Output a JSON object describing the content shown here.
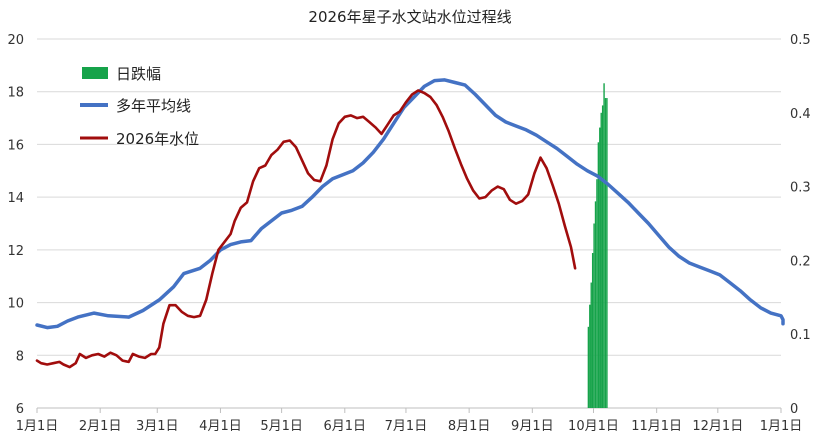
{
  "chart_data": {
    "type": "line",
    "title": "2026年星子水文站水位过程线",
    "left_axis": {
      "range": [
        6,
        20
      ],
      "ticks": [
        6,
        8,
        10,
        12,
        14,
        16,
        18,
        20
      ]
    },
    "right_axis": {
      "range": [
        0,
        0.5
      ],
      "ticks": [
        "0",
        "0.1",
        "0.2",
        "0.3",
        "0.4",
        "0.5"
      ]
    },
    "x_axis": {
      "range_days": [
        0,
        365
      ],
      "ticks": [
        {
          "label": "1月1日",
          "day": 0
        },
        {
          "label": "2月1日",
          "day": 31
        },
        {
          "label": "3月1日",
          "day": 59
        },
        {
          "label": "4月1日",
          "day": 90
        },
        {
          "label": "5月1日",
          "day": 120
        },
        {
          "label": "6月1日",
          "day": 151
        },
        {
          "label": "7月1日",
          "day": 181
        },
        {
          "label": "8月1日",
          "day": 212
        },
        {
          "label": "9月1日",
          "day": 243
        },
        {
          "label": "10月1日",
          "day": 273
        },
        {
          "label": "11月1日",
          "day": 304
        },
        {
          "label": "12月1日",
          "day": 334
        },
        {
          "label": "1月1日",
          "day": 365
        }
      ]
    },
    "grid": "horizontal",
    "legend_position": "top-left",
    "colors": {
      "daily_drop": "#16a34a",
      "average": "#4472c4",
      "level_2026": "#a10d0d"
    },
    "series": [
      {
        "name": "日跌幅",
        "kind": "bar",
        "axis": "right",
        "points": [
          [
            270.5,
            0.11
          ],
          [
            271.2,
            0.14
          ],
          [
            271.9,
            0.17
          ],
          [
            272.6,
            0.21
          ],
          [
            273.3,
            0.25
          ],
          [
            274.0,
            0.28
          ],
          [
            274.7,
            0.31
          ],
          [
            275.4,
            0.36
          ],
          [
            276.1,
            0.38
          ],
          [
            276.8,
            0.4
          ],
          [
            277.5,
            0.41
          ],
          [
            278.2,
            0.44
          ],
          [
            278.9,
            0.42
          ],
          [
            279.6,
            0.42
          ]
        ]
      },
      {
        "name": "多年平均线",
        "kind": "line",
        "axis": "left",
        "points": [
          [
            0,
            9.15
          ],
          [
            5,
            9.05
          ],
          [
            10,
            9.1
          ],
          [
            15,
            9.3
          ],
          [
            20,
            9.45
          ],
          [
            28,
            9.6
          ],
          [
            35,
            9.5
          ],
          [
            45,
            9.45
          ],
          [
            52,
            9.7
          ],
          [
            60,
            10.1
          ],
          [
            67,
            10.6
          ],
          [
            72,
            11.1
          ],
          [
            80,
            11.3
          ],
          [
            85,
            11.6
          ],
          [
            90,
            12.0
          ],
          [
            95,
            12.2
          ],
          [
            100,
            12.3
          ],
          [
            105,
            12.35
          ],
          [
            110,
            12.8
          ],
          [
            115,
            13.1
          ],
          [
            120,
            13.4
          ],
          [
            125,
            13.5
          ],
          [
            130,
            13.65
          ],
          [
            135,
            14.0
          ],
          [
            140,
            14.4
          ],
          [
            145,
            14.7
          ],
          [
            150,
            14.85
          ],
          [
            155,
            15.0
          ],
          [
            160,
            15.3
          ],
          [
            165,
            15.7
          ],
          [
            170,
            16.2
          ],
          [
            175,
            16.8
          ],
          [
            180,
            17.4
          ],
          [
            185,
            17.8
          ],
          [
            190,
            18.2
          ],
          [
            195,
            18.42
          ],
          [
            200,
            18.45
          ],
          [
            205,
            18.35
          ],
          [
            210,
            18.25
          ],
          [
            215,
            17.9
          ],
          [
            220,
            17.5
          ],
          [
            225,
            17.1
          ],
          [
            230,
            16.85
          ],
          [
            235,
            16.7
          ],
          [
            240,
            16.55
          ],
          [
            245,
            16.35
          ],
          [
            250,
            16.1
          ],
          [
            255,
            15.85
          ],
          [
            260,
            15.55
          ],
          [
            265,
            15.25
          ],
          [
            270,
            15.0
          ],
          [
            275,
            14.8
          ],
          [
            280,
            14.5
          ],
          [
            285,
            14.15
          ],
          [
            290,
            13.8
          ],
          [
            295,
            13.4
          ],
          [
            300,
            13.0
          ],
          [
            305,
            12.55
          ],
          [
            310,
            12.1
          ],
          [
            315,
            11.75
          ],
          [
            320,
            11.5
          ],
          [
            325,
            11.35
          ],
          [
            330,
            11.2
          ],
          [
            335,
            11.05
          ],
          [
            340,
            10.75
          ],
          [
            345,
            10.45
          ],
          [
            350,
            10.1
          ],
          [
            355,
            9.8
          ],
          [
            360,
            9.6
          ],
          [
            365,
            9.5
          ],
          [
            370,
            9.35
          ],
          [
            373,
            9.2
          ]
        ]
      },
      {
        "name": "2026年水位",
        "kind": "line",
        "axis": "left",
        "points": [
          [
            0,
            7.8
          ],
          [
            2,
            7.7
          ],
          [
            5,
            7.65
          ],
          [
            8,
            7.7
          ],
          [
            11,
            7.75
          ],
          [
            13,
            7.65
          ],
          [
            16,
            7.55
          ],
          [
            19,
            7.7
          ],
          [
            21,
            8.05
          ],
          [
            24,
            7.9
          ],
          [
            27,
            8.0
          ],
          [
            30,
            8.05
          ],
          [
            33,
            7.95
          ],
          [
            36,
            8.1
          ],
          [
            39,
            8.0
          ],
          [
            42,
            7.8
          ],
          [
            45,
            7.75
          ],
          [
            47,
            8.05
          ],
          [
            50,
            7.95
          ],
          [
            53,
            7.9
          ],
          [
            56,
            8.05
          ],
          [
            58,
            8.05
          ],
          [
            60,
            8.3
          ],
          [
            62,
            9.2
          ],
          [
            65,
            9.9
          ],
          [
            68,
            9.9
          ],
          [
            71,
            9.65
          ],
          [
            74,
            9.5
          ],
          [
            77,
            9.45
          ],
          [
            80,
            9.5
          ],
          [
            83,
            10.1
          ],
          [
            86,
            11.1
          ],
          [
            89,
            12.0
          ],
          [
            92,
            12.3
          ],
          [
            95,
            12.6
          ],
          [
            97,
            13.1
          ],
          [
            100,
            13.6
          ],
          [
            103,
            13.8
          ],
          [
            106,
            14.6
          ],
          [
            109,
            15.1
          ],
          [
            112,
            15.2
          ],
          [
            115,
            15.6
          ],
          [
            118,
            15.8
          ],
          [
            121,
            16.1
          ],
          [
            124,
            16.15
          ],
          [
            127,
            15.9
          ],
          [
            130,
            15.4
          ],
          [
            133,
            14.9
          ],
          [
            136,
            14.65
          ],
          [
            139,
            14.6
          ],
          [
            142,
            15.2
          ],
          [
            145,
            16.2
          ],
          [
            148,
            16.8
          ],
          [
            151,
            17.05
          ],
          [
            154,
            17.1
          ],
          [
            157,
            17.0
          ],
          [
            160,
            17.05
          ],
          [
            163,
            16.85
          ],
          [
            166,
            16.65
          ],
          [
            169,
            16.4
          ],
          [
            172,
            16.75
          ],
          [
            175,
            17.1
          ],
          [
            178,
            17.25
          ],
          [
            181,
            17.6
          ],
          [
            184,
            17.9
          ],
          [
            187,
            18.05
          ],
          [
            190,
            17.95
          ],
          [
            193,
            17.8
          ],
          [
            196,
            17.5
          ],
          [
            199,
            17.05
          ],
          [
            202,
            16.5
          ],
          [
            205,
            15.85
          ],
          [
            208,
            15.25
          ],
          [
            211,
            14.7
          ],
          [
            214,
            14.25
          ],
          [
            217,
            13.95
          ],
          [
            220,
            14.0
          ],
          [
            223,
            14.25
          ],
          [
            226,
            14.4
          ],
          [
            229,
            14.3
          ],
          [
            232,
            13.9
          ],
          [
            235,
            13.75
          ],
          [
            238,
            13.85
          ],
          [
            241,
            14.1
          ],
          [
            244,
            14.9
          ],
          [
            247,
            15.5
          ],
          [
            250,
            15.1
          ],
          [
            253,
            14.45
          ],
          [
            256,
            13.75
          ],
          [
            259,
            12.9
          ],
          [
            262,
            12.1
          ],
          [
            264,
            11.3
          ]
        ]
      }
    ]
  }
}
